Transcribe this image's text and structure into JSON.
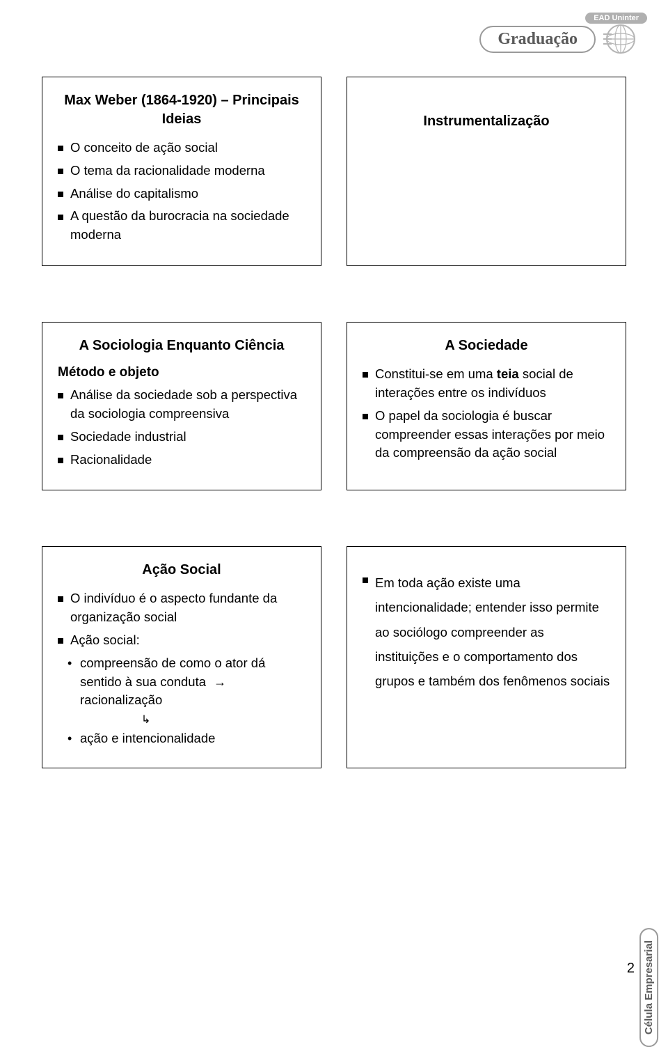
{
  "brand": {
    "ead_label": "EAD Uninter",
    "graduacao_label": "Graduação"
  },
  "side_label": "Célula Empresarial",
  "page_number": "2",
  "box1": {
    "title": "Max Weber (1864-1920) – Principais Ideias",
    "items": [
      "O conceito de ação social",
      "O tema da racionalidade moderna",
      "Análise do capitalismo",
      "A questão da burocracia na sociedade moderna"
    ]
  },
  "box2": {
    "title": "Instrumentalização"
  },
  "box3": {
    "title": "A Sociologia Enquanto Ciência",
    "subtitle": "Método e objeto",
    "items": [
      "Análise da sociedade sob a perspectiva da sociologia compreensiva",
      "Sociedade industrial",
      "Racionalidade"
    ]
  },
  "box4": {
    "title": "A Sociedade",
    "items_html": [
      "Constitui-se em uma <b>teia</b> social de interações entre os indivíduos",
      "O papel da sociologia é buscar compreender essas interações por meio da compreensão da ação social"
    ]
  },
  "box5": {
    "title": "Ação Social",
    "item1": "O indivíduo é o aspecto fundante da organização social",
    "item2": "Ação social:",
    "sub1_pre": "compreensão de como o ator dá sentido à sua conduta",
    "sub1_post": "racionalização",
    "sub2": "ação e intencionalidade"
  },
  "box6": {
    "items": [
      "Em toda ação existe uma intencionalidade; entender isso permite ao sociólogo compreender as instituições e o comportamento dos grupos e também dos fenômenos sociais"
    ]
  },
  "colors": {
    "text": "#000000",
    "border": "#000000",
    "background": "#ffffff",
    "brand_gray": "#9a9a9a",
    "brand_text": "#5a5a5a",
    "pill_bg": "#b0b0b0"
  },
  "typography": {
    "body_fontsize_pt": 14,
    "title_fontsize_pt": 15,
    "font_family": "Verdana"
  }
}
